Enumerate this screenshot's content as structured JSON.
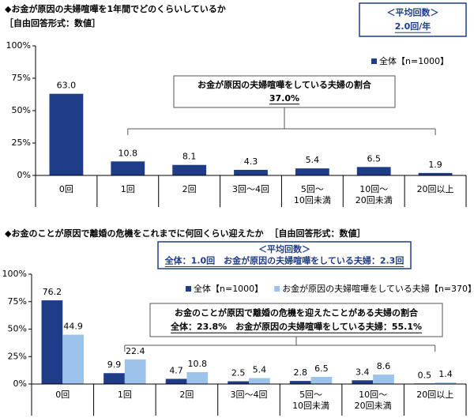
{
  "chart_data": [
    {
      "type": "bar",
      "title": "◆お金が原因の夫婦喧嘩を1年間でどのくらいしているか",
      "subtitle": "［自由回答形式：数値］",
      "average_box": {
        "heading": "＜平均回数＞",
        "text": "2.0回/年"
      },
      "annotation": {
        "heading": "お金が原因の夫婦喧嘩をしている夫婦の割合",
        "text": "37.0%"
      },
      "categories": [
        "0回",
        "1回",
        "2回",
        "3回～4回",
        "5回～\n10回未満",
        "10回～\n20回未満",
        "20回以上"
      ],
      "series": [
        {
          "name": "全体【n=1000】",
          "color": "#1f3c88",
          "values": [
            63.0,
            10.8,
            8.1,
            4.3,
            5.4,
            6.5,
            1.9
          ],
          "value_labels": [
            "63.0",
            "10.8",
            "8.1",
            "4.3",
            "5.4",
            "6.5",
            "1.9"
          ]
        }
      ],
      "ylim": [
        0,
        100
      ],
      "yticks": [
        {
          "value": 0,
          "label": "0%"
        },
        {
          "value": 25,
          "label": "25%"
        },
        {
          "value": 50,
          "label": "50%"
        },
        {
          "value": 75,
          "label": "75%"
        },
        {
          "value": 100,
          "label": "100%"
        }
      ],
      "grid": false
    },
    {
      "type": "bar",
      "title": "◆お金のことが原因で離婚の危機をこれまでに何回くらい迎えたか",
      "subtitle": "［自由回答形式：数値］",
      "average_box": {
        "heading": "＜平均回数＞",
        "text": "全体：1.0回　お金が原因の夫婦喧嘩をしている夫婦：2.3回"
      },
      "annotation": {
        "heading": "お金のことが原因で離婚の危機を迎えたことがある夫婦の割合",
        "text": "全体：23.8%　お金が原因の夫婦喧嘩をしている夫婦：55.1%"
      },
      "categories": [
        "0回",
        "1回",
        "2回",
        "3回～4回",
        "5回～\n10回未満",
        "10回～\n20回未満",
        "20回以上"
      ],
      "series": [
        {
          "name": "全体【n=1000】",
          "color": "#1f3c88",
          "values": [
            76.2,
            9.9,
            4.7,
            2.5,
            2.8,
            3.4,
            0.5
          ]
        },
        {
          "name": "お金が原因の夫婦喧嘩をしている夫婦【n=370】",
          "color": "#9cc3eb",
          "values": [
            44.9,
            22.4,
            10.8,
            5.4,
            6.5,
            8.6,
            1.4
          ]
        }
      ],
      "ylim": [
        0,
        100
      ],
      "yticks": [
        {
          "value": 0,
          "label": "0%"
        },
        {
          "value": 25,
          "label": "25%"
        },
        {
          "value": 50,
          "label": "50%"
        },
        {
          "value": 75,
          "label": "75%"
        },
        {
          "value": 100,
          "label": "100%"
        }
      ],
      "grid": false
    }
  ]
}
